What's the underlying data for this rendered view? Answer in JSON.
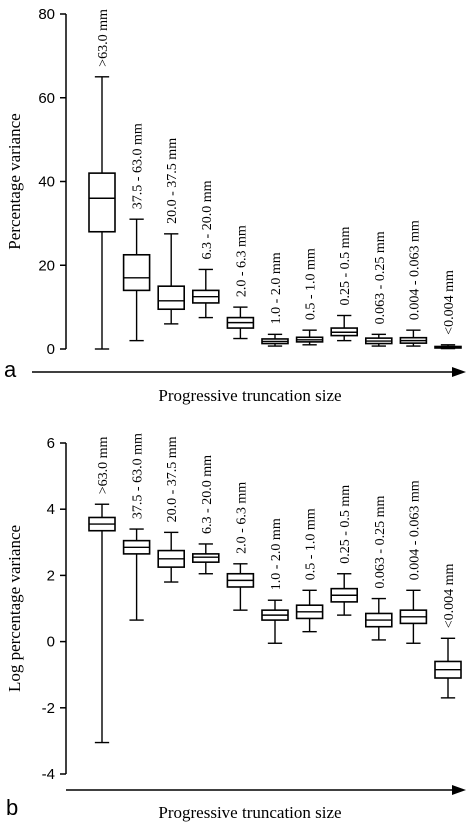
{
  "chart_data": [
    {
      "panel": "a",
      "type": "box",
      "ylabel": "Percentage variance",
      "xlabel": "Progressive truncation size",
      "ylim": [
        0,
        80
      ],
      "yticks": [
        0,
        20,
        40,
        60,
        80
      ],
      "categories": [
        ">63.0 mm",
        "37.5 - 63.0 mm",
        "20.0 - 37.5 mm",
        "6.3 - 20.0 mm",
        "2.0 - 6.3 mm",
        "1.0 - 2.0 mm",
        "0.5 - 1.0 mm",
        "0.25 - 0.5 mm",
        "0.063 - 0.25 mm",
        "0.004 - 0.063 mm",
        "<0.004 mm"
      ],
      "boxes": [
        {
          "min": 0,
          "q1": 28,
          "median": 36,
          "q3": 42,
          "max": 65
        },
        {
          "min": 2,
          "q1": 14,
          "median": 17,
          "q3": 22.5,
          "max": 31
        },
        {
          "min": 6,
          "q1": 9.5,
          "median": 11.5,
          "q3": 15,
          "max": 27.5
        },
        {
          "min": 7.5,
          "q1": 11,
          "median": 12.5,
          "q3": 14,
          "max": 19
        },
        {
          "min": 2.5,
          "q1": 5,
          "median": 6.3,
          "q3": 7.5,
          "max": 10
        },
        {
          "min": 0.7,
          "q1": 1.3,
          "median": 1.8,
          "q3": 2.4,
          "max": 3.5
        },
        {
          "min": 1,
          "q1": 1.7,
          "median": 2.2,
          "q3": 2.8,
          "max": 4.5
        },
        {
          "min": 2,
          "q1": 3.2,
          "median": 4,
          "q3": 5,
          "max": 8
        },
        {
          "min": 0.7,
          "q1": 1.3,
          "median": 1.9,
          "q3": 2.6,
          "max": 3.5
        },
        {
          "min": 0.7,
          "q1": 1.4,
          "median": 2,
          "q3": 2.7,
          "max": 4.5
        },
        {
          "min": 0.1,
          "q1": 0.25,
          "median": 0.4,
          "q3": 0.6,
          "max": 1
        }
      ]
    },
    {
      "panel": "b",
      "type": "box",
      "ylabel": "Log percentage variance",
      "xlabel": "Progressive truncation size",
      "ylim": [
        -4,
        6
      ],
      "yticks": [
        -4,
        -2,
        0,
        2,
        4,
        6
      ],
      "categories": [
        ">63.0 mm",
        "37.5 - 63.0 mm",
        "20.0 - 37.5 mm",
        "6.3 - 20.0 mm",
        "2.0 - 6.3 mm",
        "1.0 - 2.0 mm",
        "0.5 - 1.0 mm",
        "0.25 - 0.5 mm",
        "0.063 - 0.25 mm",
        "0.004 - 0.063 mm",
        "<0.004 mm"
      ],
      "boxes": [
        {
          "min": -3.05,
          "q1": 3.35,
          "median": 3.55,
          "q3": 3.75,
          "max": 4.15
        },
        {
          "min": 0.65,
          "q1": 2.65,
          "median": 2.85,
          "q3": 3.05,
          "max": 3.4
        },
        {
          "min": 1.8,
          "q1": 2.25,
          "median": 2.5,
          "q3": 2.75,
          "max": 3.3
        },
        {
          "min": 2.05,
          "q1": 2.4,
          "median": 2.55,
          "q3": 2.65,
          "max": 2.95
        },
        {
          "min": 0.95,
          "q1": 1.65,
          "median": 1.85,
          "q3": 2.05,
          "max": 2.35
        },
        {
          "min": -0.05,
          "q1": 0.65,
          "median": 0.8,
          "q3": 0.95,
          "max": 1.25
        },
        {
          "min": 0.3,
          "q1": 0.7,
          "median": 0.9,
          "q3": 1.1,
          "max": 1.55
        },
        {
          "min": 0.8,
          "q1": 1.2,
          "median": 1.4,
          "q3": 1.6,
          "max": 2.05
        },
        {
          "min": 0.05,
          "q1": 0.45,
          "median": 0.65,
          "q3": 0.85,
          "max": 1.3
        },
        {
          "min": -0.05,
          "q1": 0.55,
          "median": 0.75,
          "q3": 0.95,
          "max": 1.55
        },
        {
          "min": -1.7,
          "q1": -1.1,
          "median": -0.85,
          "q3": -0.6,
          "max": 0.1
        }
      ]
    }
  ]
}
